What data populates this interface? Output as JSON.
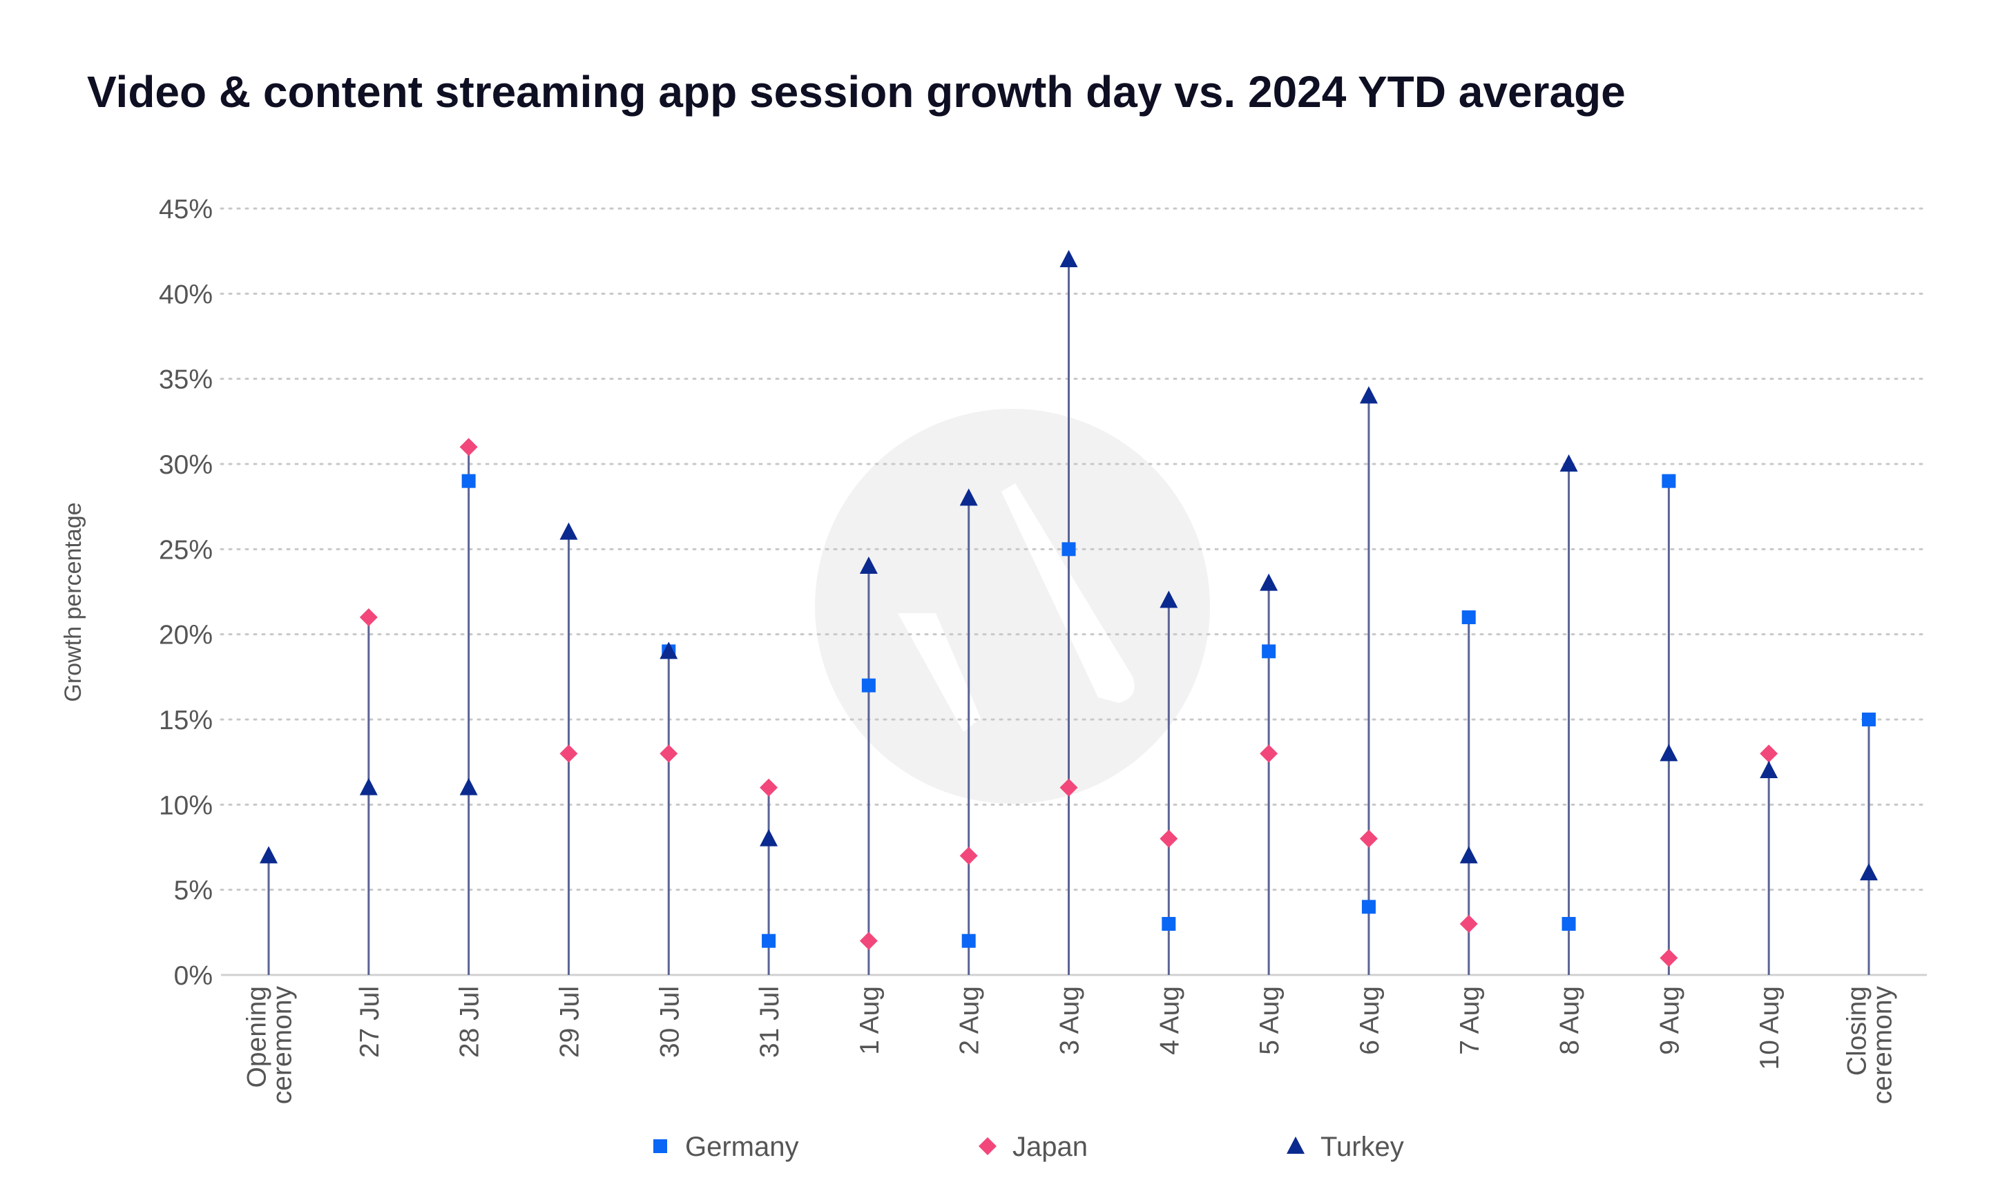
{
  "chart_data": {
    "type": "dot-plot",
    "title": "Video & content streaming app session growth day vs. 2024 YTD average",
    "ylabel": "Growth percentage",
    "ylim": [
      0,
      45
    ],
    "yticks": [
      "0%",
      "5%",
      "10%",
      "15%",
      "20%",
      "25%",
      "30%",
      "35%",
      "40%",
      "45%"
    ],
    "grid": true,
    "legend_position": "bottom",
    "categories": [
      [
        "Opening",
        "ceremony"
      ],
      [
        "27 Jul"
      ],
      [
        "28 Jul"
      ],
      [
        "29 Jul"
      ],
      [
        "30 Jul"
      ],
      [
        "31 Jul"
      ],
      [
        "1 Aug"
      ],
      [
        "2 Aug"
      ],
      [
        "3 Aug"
      ],
      [
        "4 Aug"
      ],
      [
        "5 Aug"
      ],
      [
        "6 Aug"
      ],
      [
        "7 Aug"
      ],
      [
        "8 Aug"
      ],
      [
        "9 Aug"
      ],
      [
        "10 Aug"
      ],
      [
        "Closing",
        "ceremony"
      ]
    ],
    "series": [
      {
        "name": "Germany",
        "marker": "square",
        "color": "#0a66f5",
        "values": [
          null,
          null,
          29,
          null,
          19,
          2,
          17,
          2,
          25,
          3,
          19,
          4,
          21,
          3,
          29,
          null,
          15
        ]
      },
      {
        "name": "Japan",
        "marker": "diamond",
        "color": "#f2477a",
        "values": [
          null,
          21,
          31,
          13,
          13,
          11,
          2,
          7,
          11,
          8,
          13,
          8,
          3,
          null,
          1,
          13,
          null
        ]
      },
      {
        "name": "Turkey",
        "marker": "triangle",
        "color": "#0b2a8f",
        "values": [
          7,
          11,
          11,
          26,
          19,
          8,
          24,
          28,
          42,
          22,
          23,
          34,
          7,
          30,
          13,
          12,
          6
        ]
      }
    ],
    "stem_color": "#5a6496",
    "grid_color": "#c8c8c8",
    "text_color": "#555555"
  }
}
